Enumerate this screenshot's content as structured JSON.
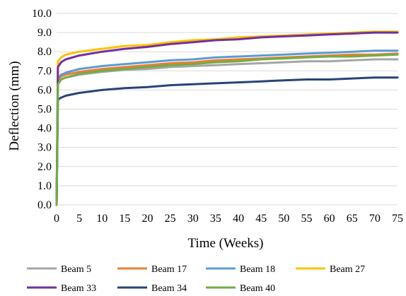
{
  "chart_data": {
    "type": "line",
    "title": "",
    "xlabel": "Time (Weeks)",
    "ylabel": "Deflection (mm)",
    "xlim": [
      0,
      75
    ],
    "ylim": [
      0,
      10
    ],
    "x_ticks": [
      "0",
      "5",
      "10",
      "15",
      "20",
      "25",
      "30",
      "35",
      "40",
      "45",
      "50",
      "55",
      "60",
      "65",
      "70",
      "75"
    ],
    "y_ticks": [
      "0.0",
      "1.0",
      "2.0",
      "3.0",
      "4.0",
      "5.0",
      "6.0",
      "7.0",
      "8.0",
      "9.0",
      "10.0"
    ],
    "grid": true,
    "legend_position": "bottom",
    "x": [
      0,
      0.3,
      1,
      2,
      5,
      10,
      15,
      20,
      25,
      30,
      35,
      40,
      45,
      50,
      55,
      60,
      65,
      70,
      75
    ],
    "series": [
      {
        "name": "Beam 5",
        "color": "#a5a5a5",
        "values": [
          0,
          6.3,
          6.55,
          6.65,
          6.8,
          6.95,
          7.05,
          7.1,
          7.2,
          7.25,
          7.3,
          7.35,
          7.4,
          7.45,
          7.5,
          7.5,
          7.55,
          7.6,
          7.6
        ]
      },
      {
        "name": "Beam 17",
        "color": "#ed7d31",
        "values": [
          0,
          6.5,
          6.7,
          6.8,
          6.95,
          7.1,
          7.2,
          7.3,
          7.4,
          7.45,
          7.55,
          7.6,
          7.65,
          7.7,
          7.75,
          7.8,
          7.85,
          7.85,
          7.9
        ]
      },
      {
        "name": "Beam 18",
        "color": "#5b9bd5",
        "values": [
          0,
          6.6,
          6.8,
          6.9,
          7.1,
          7.25,
          7.35,
          7.45,
          7.55,
          7.6,
          7.7,
          7.75,
          7.8,
          7.85,
          7.9,
          7.95,
          8.0,
          8.05,
          8.05
        ]
      },
      {
        "name": "Beam 27",
        "color": "#ffc000",
        "values": [
          0,
          7.5,
          7.7,
          7.85,
          8.0,
          8.15,
          8.3,
          8.35,
          8.5,
          8.6,
          8.65,
          8.75,
          8.8,
          8.85,
          8.9,
          8.95,
          9.0,
          9.05,
          9.05
        ]
      },
      {
        "name": "Beam 33",
        "color": "#7030a0",
        "values": [
          0,
          7.2,
          7.45,
          7.6,
          7.8,
          8.0,
          8.15,
          8.25,
          8.4,
          8.5,
          8.6,
          8.65,
          8.75,
          8.8,
          8.85,
          8.9,
          8.95,
          9.0,
          9.0
        ]
      },
      {
        "name": "Beam 34",
        "color": "#264478",
        "values": [
          0,
          5.5,
          5.6,
          5.7,
          5.85,
          6.0,
          6.1,
          6.15,
          6.25,
          6.3,
          6.35,
          6.4,
          6.45,
          6.5,
          6.55,
          6.55,
          6.6,
          6.65,
          6.65
        ]
      },
      {
        "name": "Beam 40",
        "color": "#70ad47",
        "values": [
          0,
          6.3,
          6.55,
          6.65,
          6.85,
          7.0,
          7.1,
          7.2,
          7.3,
          7.35,
          7.45,
          7.5,
          7.6,
          7.65,
          7.7,
          7.75,
          7.75,
          7.8,
          7.85
        ]
      }
    ]
  }
}
